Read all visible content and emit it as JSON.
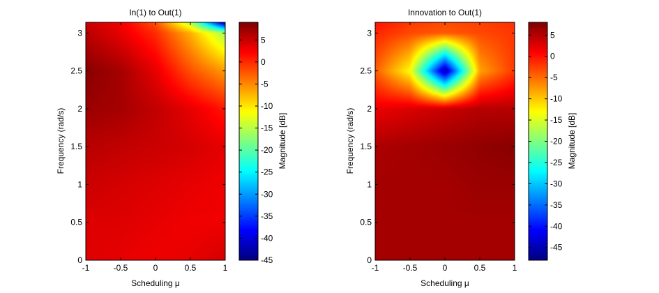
{
  "chart_data": [
    {
      "type": "heatmap",
      "title": "In(1) to Out(1)",
      "xlabel": "Scheduling μ",
      "ylabel": "Frequency (rad/s)",
      "colorbar_label": "Magnitude [dB]",
      "xlim": [
        -1,
        1
      ],
      "ylim": [
        0,
        3.1416
      ],
      "clim": [
        -45,
        9
      ],
      "xticks": [
        -1,
        -0.5,
        0,
        0.5,
        1
      ],
      "xtick_labels": [
        "-1",
        "-0.5",
        "0",
        "0.5",
        "1"
      ],
      "yticks": [
        0,
        0.5,
        1,
        1.5,
        2,
        2.5,
        3
      ],
      "ytick_labels": [
        "0",
        "0.5",
        "1",
        "1.5",
        "2",
        "2.5",
        "3"
      ],
      "cticks": [
        -45,
        -40,
        -35,
        -30,
        -25,
        -20,
        -15,
        -10,
        -5,
        0,
        5
      ],
      "ctick_labels": [
        "-45",
        "-40",
        "-35",
        "-30",
        "-25",
        "-20",
        "-15",
        "-10",
        "-5",
        "0",
        "5"
      ],
      "x": [
        -1,
        -0.5,
        0,
        0.5,
        1
      ],
      "y": [
        0,
        0.5,
        1,
        1.5,
        2,
        2.5,
        3,
        3.1416
      ],
      "z": [
        [
          4.0,
          3.5,
          3.0,
          3.5,
          4.5
        ],
        [
          4.0,
          4.0,
          3.5,
          3.0,
          3.0
        ],
        [
          5.0,
          4.5,
          4.0,
          3.5,
          3.0
        ],
        [
          6.0,
          5.5,
          5.0,
          4.5,
          3.5
        ],
        [
          7.5,
          7.0,
          5.5,
          3.5,
          1.0
        ],
        [
          8.5,
          7.0,
          3.5,
          -2.0,
          -6.0
        ],
        [
          6.0,
          3.5,
          0.0,
          -7.0,
          -16.0
        ],
        [
          5.0,
          3.0,
          -2.0,
          -15.0,
          -43.0
        ]
      ]
    },
    {
      "type": "heatmap",
      "title": "Innovation to Out(1)",
      "xlabel": "Scheduling μ",
      "ylabel": "Frequency (rad/s)",
      "colorbar_label": "Magnitude [dB]",
      "xlim": [
        -1,
        1
      ],
      "ylim": [
        0,
        3.1416
      ],
      "clim": [
        -48,
        8
      ],
      "xticks": [
        -1,
        -0.5,
        0,
        0.5,
        1
      ],
      "xtick_labels": [
        "-1",
        "-0.5",
        "0",
        "0.5",
        "1"
      ],
      "yticks": [
        0,
        0.5,
        1,
        1.5,
        2,
        2.5,
        3
      ],
      "ytick_labels": [
        "0",
        "0.5",
        "1",
        "1.5",
        "2",
        "2.5",
        "3"
      ],
      "cticks": [
        -45,
        -40,
        -35,
        -30,
        -25,
        -20,
        -15,
        -10,
        -5,
        0,
        5
      ],
      "ctick_labels": [
        "-45",
        "-40",
        "-35",
        "-30",
        "-25",
        "-20",
        "-15",
        "-10",
        "-5",
        "0",
        "5"
      ],
      "x": [
        -1,
        -0.5,
        0,
        0.5,
        1
      ],
      "y": [
        0,
        0.5,
        1,
        1.5,
        2,
        2.5,
        3,
        3.1416
      ],
      "z": [
        [
          6.0,
          6.0,
          6.0,
          6.0,
          6.0
        ],
        [
          6.0,
          6.0,
          6.0,
          6.0,
          6.0
        ],
        [
          6.0,
          6.0,
          6.0,
          6.5,
          6.5
        ],
        [
          5.5,
          6.0,
          6.5,
          7.0,
          7.5
        ],
        [
          2.0,
          3.0,
          4.0,
          5.0,
          5.0
        ],
        [
          -4.0,
          -13.0,
          -46.0,
          -8.0,
          -2.0
        ],
        [
          -1.0,
          -3.0,
          -4.0,
          -3.0,
          -2.0
        ],
        [
          0.0,
          -2.0,
          -3.0,
          -2.5,
          -1.5
        ]
      ]
    }
  ]
}
